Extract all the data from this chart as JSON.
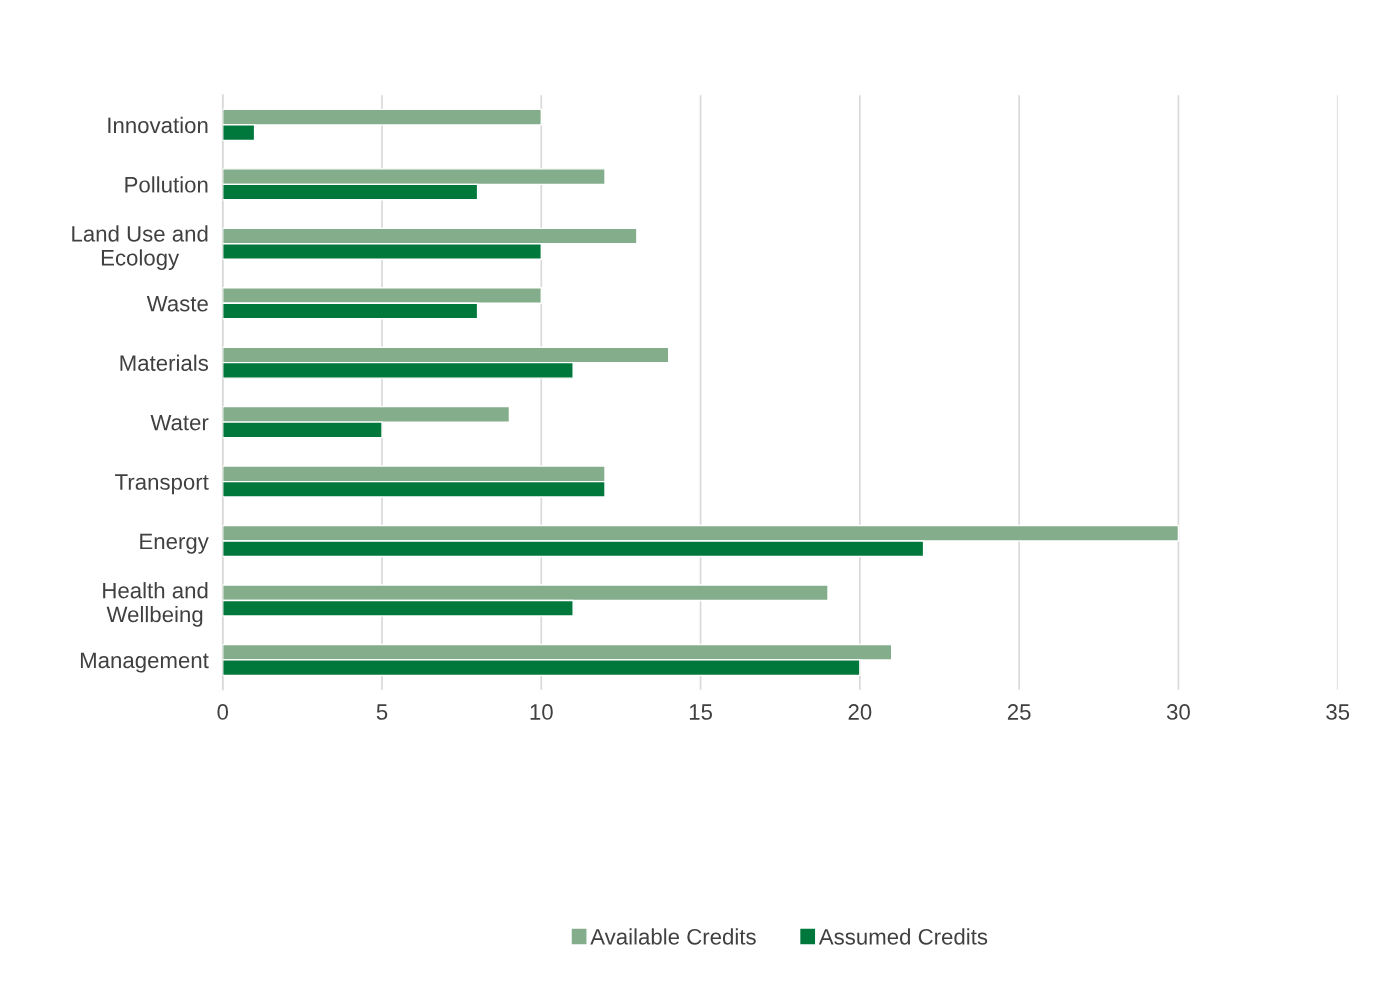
{
  "chart_data": {
    "type": "bar",
    "orientation": "horizontal",
    "categories": [
      "Innovation",
      "Pollution",
      "Land Use and\nEcology",
      "Waste",
      "Materials",
      "Water",
      "Transport",
      "Energy",
      "Health and\nWellbeing",
      "Management"
    ],
    "series": [
      {
        "name": "Available Credits",
        "color": "#84ad8c",
        "values": [
          10,
          12,
          13,
          10,
          14,
          9,
          12,
          30,
          19,
          21
        ]
      },
      {
        "name": "Assumed Credits",
        "color": "#00783c",
        "values": [
          1,
          8,
          10,
          8,
          11,
          5,
          12,
          22,
          11,
          20
        ]
      }
    ],
    "xlim": [
      0,
      35
    ],
    "xticks": [
      0,
      5,
      10,
      15,
      20,
      25,
      30,
      35
    ],
    "grid": "x",
    "legend": "bottom"
  }
}
